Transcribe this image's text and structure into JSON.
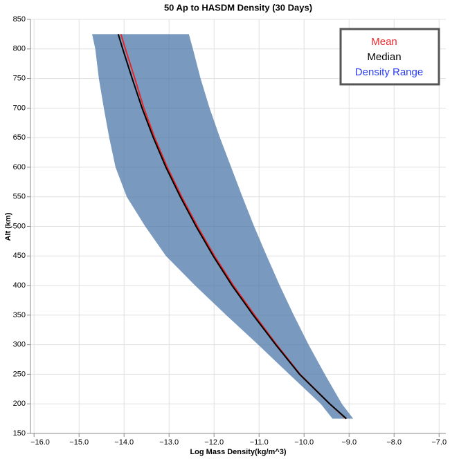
{
  "chart_data": {
    "type": "line",
    "title": "50 Ap to HASDM Density (30 Days)",
    "x_label": "Log Mass Density(kg/m^3)",
    "y_label": "Alt (km)",
    "altitudes": [
      175,
      200,
      250,
      300,
      350,
      400,
      450,
      500,
      550,
      600,
      650,
      700,
      750,
      800,
      825
    ],
    "band": {
      "name": "Density Range",
      "color": "#4c78a8",
      "text_color": "#2a3cf5",
      "low": [
        -9.37,
        -9.63,
        -10.33,
        -11.02,
        -11.73,
        -12.42,
        -13.07,
        -13.53,
        -13.94,
        -14.19,
        -14.33,
        -14.45,
        -14.56,
        -14.64,
        -14.71
      ],
      "high": [
        -8.91,
        -9.16,
        -9.54,
        -9.9,
        -10.23,
        -10.54,
        -10.83,
        -11.11,
        -11.37,
        -11.62,
        -11.87,
        -12.1,
        -12.3,
        -12.47,
        -12.56
      ]
    },
    "series": [
      {
        "name": "Mean",
        "color": "#e8262a",
        "values": [
          -9.07,
          -9.43,
          -10.09,
          -10.61,
          -11.1,
          -11.57,
          -11.99,
          -12.37,
          -12.72,
          -13.04,
          -13.32,
          -13.56,
          -13.76,
          -13.97,
          -14.07
        ]
      },
      {
        "name": "Median",
        "color": "#000000",
        "values": [
          -9.06,
          -9.43,
          -10.1,
          -10.63,
          -11.13,
          -11.6,
          -12.02,
          -12.4,
          -12.75,
          -13.07,
          -13.35,
          -13.6,
          -13.82,
          -14.03,
          -14.13
        ]
      }
    ],
    "xlim": [
      -16.08,
      -6.85
    ],
    "ylim": [
      150,
      850
    ],
    "xticks": [
      {
        "value": -16,
        "label": "−16.0"
      },
      {
        "value": -15,
        "label": "−15.0"
      },
      {
        "value": -14,
        "label": "−14.0"
      },
      {
        "value": -13,
        "label": "−13.0"
      },
      {
        "value": -12,
        "label": "−12.0"
      },
      {
        "value": -11,
        "label": "−11.0"
      },
      {
        "value": -10,
        "label": "−10.0"
      },
      {
        "value": -9,
        "label": "−9.0"
      },
      {
        "value": -8,
        "label": "−8.0"
      },
      {
        "value": -7,
        "label": "−7.0"
      }
    ],
    "yticks": [
      150,
      200,
      250,
      300,
      350,
      400,
      450,
      500,
      550,
      600,
      650,
      700,
      750,
      800,
      850
    ],
    "grid": true
  }
}
